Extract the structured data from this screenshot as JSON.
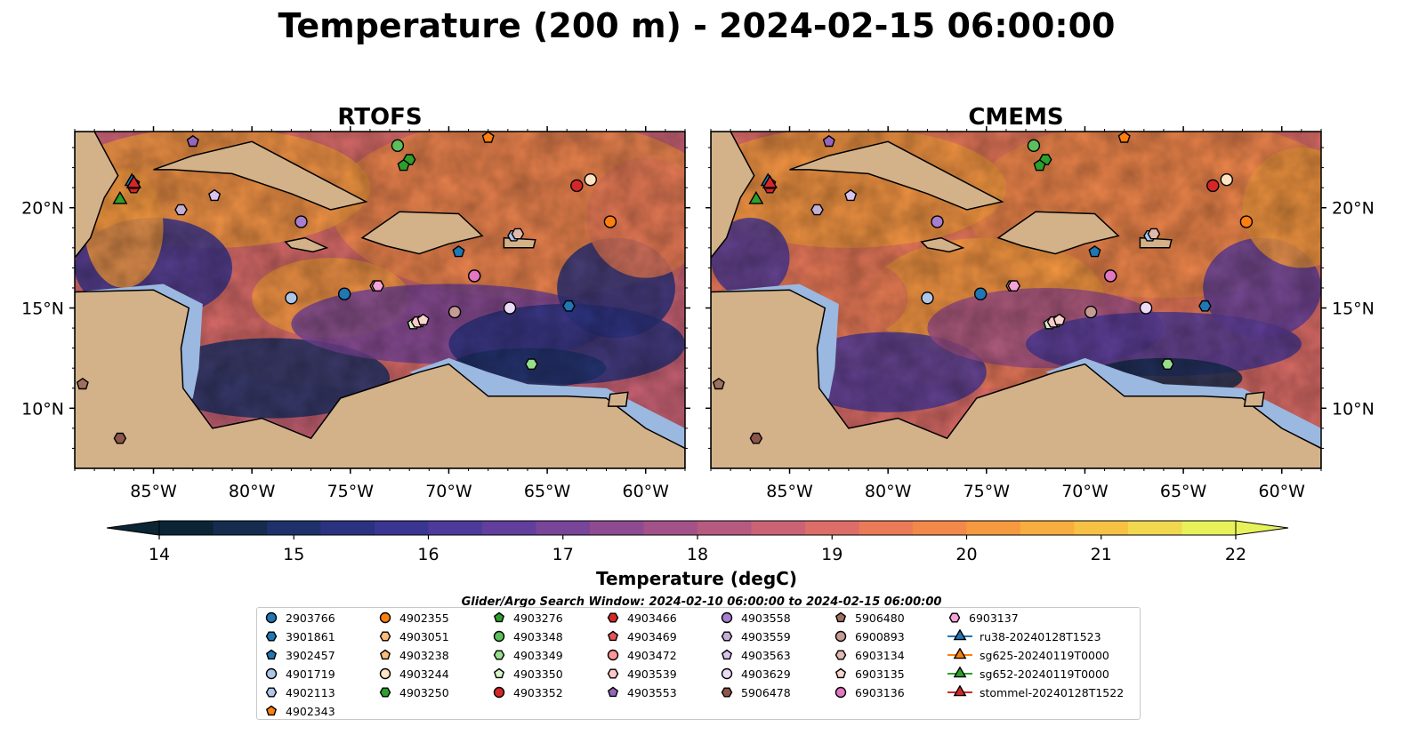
{
  "title": "Temperature (200 m) - 2024-02-15 06:00:00",
  "panels": [
    {
      "name": "RTOFS"
    },
    {
      "name": "CMEMS"
    }
  ],
  "axes": {
    "lon_ticks": [
      "85°W",
      "80°W",
      "75°W",
      "70°W",
      "65°W",
      "60°W"
    ],
    "lat_ticks": [
      "20°N",
      "15°N",
      "10°N"
    ],
    "lon_range": [
      -89,
      -58
    ],
    "lat_range": [
      7,
      23.8
    ]
  },
  "colorbar": {
    "label": "Temperature (degC)",
    "ticks": [
      "14",
      "15",
      "16",
      "17",
      "18",
      "19",
      "20",
      "21",
      "22"
    ],
    "range": [
      14,
      22
    ],
    "step": 0.5,
    "extend": "both",
    "colors": [
      "#0b2534",
      "#152c4f",
      "#1e316a",
      "#2b3280",
      "#3b3592",
      "#4e3a9a",
      "#623f9d",
      "#784599",
      "#8e4b91",
      "#a35289",
      "#b75a80",
      "#cb6376",
      "#dd6d68",
      "#ea7a58",
      "#f2894a",
      "#f69a40",
      "#f7ad3f",
      "#f7c244",
      "#f1d84e",
      "#e7f25a"
    ]
  },
  "search_window": "Glider/Argo Search Window: 2024-02-10 06:00:00 to 2024-02-15 06:00:00",
  "chart_data": {
    "type": "heatmap",
    "variable": "Temperature (200 m)",
    "units": "degC",
    "panels": [
      "RTOFS",
      "CMEMS"
    ],
    "colorbar_range": [
      14,
      22
    ],
    "floats": [
      {
        "id": "2903766",
        "marker": "circle",
        "color": "#1f77b4",
        "lon": -75.3,
        "lat": 15.7
      },
      {
        "id": "3901861",
        "marker": "hexagon",
        "color": "#1f77b4",
        "lon": -63.9,
        "lat": 15.1
      },
      {
        "id": "3902457",
        "marker": "pentagon",
        "color": "#1f77b4",
        "lon": -69.5,
        "lat": 17.8
      },
      {
        "id": "4901719",
        "marker": "circle",
        "color": "#aec7e8",
        "lon": -78.0,
        "lat": 15.5
      },
      {
        "id": "4902113",
        "marker": "hexagon",
        "color": "#aec7e8",
        "lon": -66.7,
        "lat": 18.6
      },
      {
        "id": "4902343",
        "marker": "pentagon",
        "color": "#ff7f0e",
        "lon": -68.0,
        "lat": 23.5
      },
      {
        "id": "4902355",
        "marker": "circle",
        "color": "#ff7f0e",
        "lon": -61.8,
        "lat": 19.3
      },
      {
        "id": "4903051",
        "marker": "hexagon",
        "color": "#ffbb78",
        "lon": -73.7,
        "lat": 16.1
      },
      {
        "id": "4903238",
        "marker": "pentagon",
        "color": "#ffbb78",
        "lon": -71.5,
        "lat": 14.3
      },
      {
        "id": "4903244",
        "marker": "circle",
        "color": "#ffe4c4",
        "lon": -62.8,
        "lat": 21.4
      },
      {
        "id": "4903250",
        "marker": "hexagon",
        "color": "#2ca02c",
        "lon": -72.0,
        "lat": 22.4
      },
      {
        "id": "4903276",
        "marker": "pentagon",
        "color": "#2ca02c",
        "lon": -72.3,
        "lat": 22.1
      },
      {
        "id": "4903348",
        "marker": "circle",
        "color": "#5cbf5c",
        "lon": -72.6,
        "lat": 23.1
      },
      {
        "id": "4903349",
        "marker": "hexagon",
        "color": "#98df8a",
        "lon": -65.8,
        "lat": 12.2
      },
      {
        "id": "4903350",
        "marker": "pentagon",
        "color": "#d6f5c8",
        "lon": -71.8,
        "lat": 14.2
      },
      {
        "id": "4903352",
        "marker": "circle",
        "color": "#d62728",
        "lon": -63.5,
        "lat": 21.1
      },
      {
        "id": "4903466",
        "marker": "hexagon",
        "color": "#d62728",
        "lon": -86.0,
        "lat": 21.0
      },
      {
        "id": "4903469",
        "marker": "pentagon",
        "color": "#e8545a",
        "lon": -86.0,
        "lat": 21.2
      },
      {
        "id": "4903472",
        "marker": "circle",
        "color": "#ff9896",
        "lon": -68.7,
        "lat": 16.6
      },
      {
        "id": "4903539",
        "marker": "hexagon",
        "color": "#ffc8c8",
        "lon": -71.6,
        "lat": 14.3
      },
      {
        "id": "4903553",
        "marker": "pentagon",
        "color": "#9467bd",
        "lon": -83.0,
        "lat": 23.3
      },
      {
        "id": "4903558",
        "marker": "circle",
        "color": "#a67fcf",
        "lon": -77.5,
        "lat": 19.3
      },
      {
        "id": "4903559",
        "marker": "hexagon",
        "color": "#c5b0d5",
        "lon": -83.6,
        "lat": 19.9
      },
      {
        "id": "4903563",
        "marker": "pentagon",
        "color": "#d8c4ee",
        "lon": -81.9,
        "lat": 20.6
      },
      {
        "id": "4903629",
        "marker": "circle",
        "color": "#eadcf7",
        "lon": -66.9,
        "lat": 15.0
      },
      {
        "id": "5906478",
        "marker": "hexagon",
        "color": "#8c564b",
        "lon": -86.7,
        "lat": 8.5
      },
      {
        "id": "5906480",
        "marker": "pentagon",
        "color": "#a0705f",
        "lon": -88.6,
        "lat": 11.2
      },
      {
        "id": "6900893",
        "marker": "circle",
        "color": "#c49c94",
        "lon": -69.7,
        "lat": 14.8
      },
      {
        "id": "6903134",
        "marker": "hexagon",
        "color": "#e0b8ad",
        "lon": -66.5,
        "lat": 18.7
      },
      {
        "id": "6903135",
        "marker": "pentagon",
        "color": "#f5d5cc",
        "lon": -71.3,
        "lat": 14.4
      },
      {
        "id": "6903136",
        "marker": "circle",
        "color": "#e377c2",
        "lon": -68.7,
        "lat": 16.6
      },
      {
        "id": "6903137",
        "marker": "hexagon",
        "color": "#f7a3d8",
        "lon": -73.6,
        "lat": 16.1
      },
      {
        "id": "ru38-20240128T1523",
        "marker": "triangle",
        "color": "#1f77b4",
        "lon": -86.1,
        "lat": 21.3
      },
      {
        "id": "sg625-20240119T0000",
        "marker": "triangle",
        "color": "#ff7f0e",
        "lon": -86.0,
        "lat": 21.2
      },
      {
        "id": "sg652-20240119T0000",
        "marker": "triangle",
        "color": "#2ca02c",
        "lon": -86.7,
        "lat": 20.4
      },
      {
        "id": "stommel-20240128T1522",
        "marker": "triangle",
        "color": "#d62728",
        "lon": -86.0,
        "lat": 21.2
      }
    ]
  }
}
